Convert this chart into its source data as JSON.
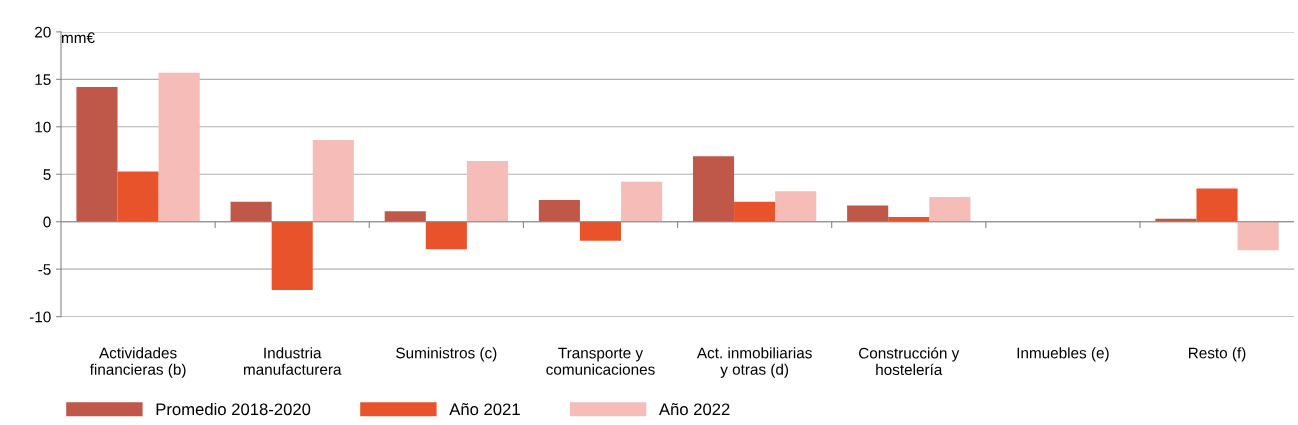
{
  "chart_data": {
    "type": "bar",
    "ylabel": "mm€",
    "categories": [
      "Actividades\nfinancieras (b)",
      "Industria\nmanufacturera",
      "Suministros (c)",
      "Transporte y\ncomunicaciones",
      "Act. inmobiliarias\ny otras (d)",
      "Construcción y\nhostelería",
      "Inmuebles (e)",
      "Resto (f)"
    ],
    "series": [
      {
        "name": "Promedio 2018-2020",
        "color": "#c0584a",
        "values": [
          14.2,
          2.1,
          1.1,
          2.3,
          6.9,
          1.7,
          null,
          0.3
        ]
      },
      {
        "name": "Año 2021",
        "color": "#e9532c",
        "values": [
          5.3,
          -7.2,
          -2.9,
          -2.0,
          2.1,
          0.5,
          null,
          3.5
        ]
      },
      {
        "name": "Año 2022",
        "color": "#f5bcb8",
        "values": [
          15.7,
          8.6,
          6.4,
          4.2,
          3.2,
          2.6,
          null,
          -3.0
        ]
      }
    ],
    "ylim": [
      -10,
      20
    ],
    "yticks": [
      -10,
      -5,
      0,
      5,
      10,
      15,
      20
    ],
    "grid": "y",
    "legend": "bottom left"
  }
}
